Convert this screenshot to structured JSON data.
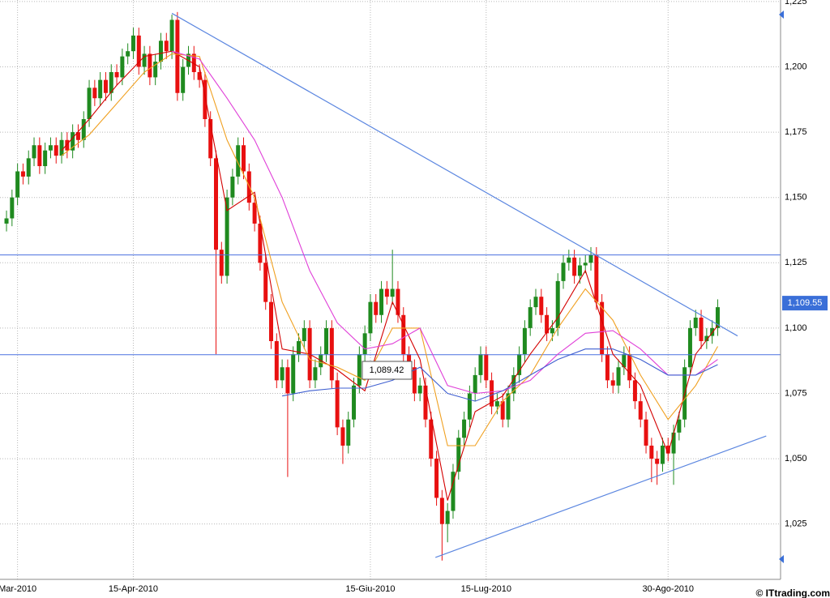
{
  "chart_data": {
    "type": "candlestick",
    "open": [
      1.14,
      1.142,
      1.15,
      1.16,
      1.158,
      1.165,
      1.17,
      1.162,
      1.168,
      1.17,
      1.166,
      1.172,
      1.168,
      1.175,
      1.172,
      1.18,
      1.192,
      1.188,
      1.195,
      1.19,
      1.198,
      1.196,
      1.204,
      1.206,
      1.212,
      1.2,
      1.205,
      1.196,
      1.202,
      1.21,
      1.206,
      1.218,
      1.19,
      1.2,
      1.205,
      1.198,
      1.195,
      1.18,
      1.165,
      1.13,
      1.12,
      1.15,
      1.158,
      1.17,
      1.16,
      1.148,
      1.14,
      1.125,
      1.11,
      1.095,
      1.08,
      1.085,
      1.075,
      1.09,
      1.095,
      1.1,
      1.08,
      1.085,
      1.09,
      1.1,
      1.08,
      1.062,
      1.055,
      1.065,
      1.078,
      1.09,
      1.098,
      1.11,
      1.105,
      1.115,
      1.112,
      1.115,
      1.105,
      1.09,
      1.085,
      1.075,
      1.078,
      1.065,
      1.05,
      1.035,
      1.025,
      1.03,
      1.045,
      1.058,
      1.065,
      1.075,
      1.082,
      1.09,
      1.08,
      1.07,
      1.072,
      1.065,
      1.075,
      1.082,
      1.09,
      1.1,
      1.108,
      1.112,
      1.105,
      1.098,
      1.1,
      1.118,
      1.125,
      1.127,
      1.12,
      1.124,
      1.125,
      1.128,
      1.11,
      1.09,
      1.08,
      1.078,
      1.085,
      1.09,
      1.08,
      1.072,
      1.065,
      1.055,
      1.05,
      1.048,
      1.055,
      1.052,
      1.06,
      1.065,
      1.085,
      1.1,
      1.104,
      1.095,
      1.097,
      1.1
    ],
    "high": [
      1.145,
      1.153,
      1.163,
      1.163,
      1.168,
      1.173,
      1.173,
      1.171,
      1.173,
      1.173,
      1.175,
      1.175,
      1.178,
      1.178,
      1.183,
      1.195,
      1.195,
      1.198,
      1.198,
      1.201,
      1.201,
      1.207,
      1.209,
      1.215,
      1.215,
      1.208,
      1.208,
      1.205,
      1.213,
      1.213,
      1.22,
      1.221,
      1.203,
      1.208,
      1.208,
      1.201,
      1.198,
      1.183,
      1.168,
      1.133,
      1.153,
      1.161,
      1.173,
      1.173,
      1.163,
      1.151,
      1.143,
      1.128,
      1.113,
      1.098,
      1.088,
      1.088,
      1.093,
      1.098,
      1.103,
      1.103,
      1.088,
      1.093,
      1.103,
      1.103,
      1.083,
      1.065,
      1.068,
      1.081,
      1.093,
      1.101,
      1.113,
      1.113,
      1.118,
      1.118,
      1.13,
      1.118,
      1.108,
      1.093,
      1.088,
      1.081,
      1.081,
      1.068,
      1.053,
      1.038,
      1.033,
      1.048,
      1.061,
      1.068,
      1.078,
      1.085,
      1.093,
      1.093,
      1.083,
      1.075,
      1.075,
      1.078,
      1.085,
      1.093,
      1.103,
      1.111,
      1.115,
      1.115,
      1.108,
      1.103,
      1.121,
      1.128,
      1.13,
      1.13,
      1.127,
      1.128,
      1.131,
      1.131,
      1.113,
      1.093,
      1.083,
      1.088,
      1.093,
      1.093,
      1.083,
      1.075,
      1.068,
      1.058,
      1.053,
      1.058,
      1.058,
      1.063,
      1.068,
      1.088,
      1.103,
      1.107,
      1.107,
      1.1,
      1.103,
      1.111
    ],
    "low": [
      1.137,
      1.139,
      1.147,
      1.155,
      1.155,
      1.162,
      1.159,
      1.159,
      1.165,
      1.163,
      1.163,
      1.165,
      1.165,
      1.169,
      1.169,
      1.177,
      1.185,
      1.185,
      1.187,
      1.187,
      1.193,
      1.193,
      1.201,
      1.203,
      1.197,
      1.197,
      1.193,
      1.193,
      1.199,
      1.203,
      1.203,
      1.187,
      1.187,
      1.197,
      1.195,
      1.192,
      1.177,
      1.162,
      1.09,
      1.117,
      1.117,
      1.147,
      1.155,
      1.157,
      1.145,
      1.137,
      1.122,
      1.107,
      1.092,
      1.077,
      1.077,
      1.043,
      1.072,
      1.087,
      1.092,
      1.077,
      1.077,
      1.082,
      1.087,
      1.077,
      1.059,
      1.048,
      1.052,
      1.062,
      1.075,
      1.087,
      1.095,
      1.102,
      1.102,
      1.109,
      1.109,
      1.102,
      1.087,
      1.082,
      1.072,
      1.072,
      1.062,
      1.047,
      1.032,
      1.011,
      1.018,
      1.027,
      1.042,
      1.055,
      1.062,
      1.072,
      1.079,
      1.077,
      1.067,
      1.067,
      1.062,
      1.062,
      1.072,
      1.079,
      1.087,
      1.097,
      1.105,
      1.102,
      1.095,
      1.095,
      1.097,
      1.115,
      1.122,
      1.117,
      1.117,
      1.121,
      1.122,
      1.107,
      1.087,
      1.077,
      1.075,
      1.075,
      1.082,
      1.077,
      1.069,
      1.062,
      1.052,
      1.041,
      1.04,
      1.045,
      1.049,
      1.04,
      1.057,
      1.062,
      1.082,
      1.097,
      1.092,
      1.092,
      1.094,
      1.097
    ],
    "close": [
      1.142,
      1.15,
      1.16,
      1.158,
      1.165,
      1.17,
      1.162,
      1.168,
      1.17,
      1.166,
      1.172,
      1.168,
      1.175,
      1.172,
      1.18,
      1.192,
      1.188,
      1.195,
      1.19,
      1.198,
      1.196,
      1.204,
      1.206,
      1.212,
      1.2,
      1.205,
      1.196,
      1.202,
      1.21,
      1.206,
      1.218,
      1.19,
      1.2,
      1.205,
      1.198,
      1.195,
      1.18,
      1.165,
      1.13,
      1.12,
      1.15,
      1.158,
      1.17,
      1.16,
      1.148,
      1.14,
      1.125,
      1.11,
      1.095,
      1.08,
      1.085,
      1.075,
      1.09,
      1.095,
      1.1,
      1.08,
      1.085,
      1.09,
      1.1,
      1.08,
      1.062,
      1.055,
      1.065,
      1.078,
      1.09,
      1.098,
      1.11,
      1.105,
      1.115,
      1.112,
      1.115,
      1.105,
      1.09,
      1.085,
      1.075,
      1.078,
      1.065,
      1.05,
      1.035,
      1.025,
      1.03,
      1.045,
      1.058,
      1.065,
      1.075,
      1.082,
      1.09,
      1.08,
      1.07,
      1.072,
      1.065,
      1.075,
      1.082,
      1.09,
      1.1,
      1.108,
      1.112,
      1.105,
      1.098,
      1.1,
      1.118,
      1.125,
      1.127,
      1.12,
      1.124,
      1.125,
      1.128,
      1.11,
      1.09,
      1.08,
      1.078,
      1.085,
      1.09,
      1.08,
      1.072,
      1.065,
      1.055,
      1.05,
      1.048,
      1.055,
      1.052,
      1.06,
      1.065,
      1.085,
      1.1,
      1.104,
      1.095,
      1.097,
      1.1,
      1.108
    ],
    "up_color": "#1f8a1f",
    "down_color": "#e81010",
    "xlim": [
      -1.18,
      140.4
    ],
    "xticks": [
      {
        "value": 2,
        "label": "Mar-2010"
      },
      {
        "value": 23,
        "label": "15-Apr-2010"
      },
      {
        "value": 66,
        "label": "15-Giu-2010"
      },
      {
        "value": 87,
        "label": "15-Lug-2010"
      },
      {
        "value": 120,
        "label": "30-Ago-2010"
      }
    ],
    "ylim": [
      1.0038,
      1.2256
    ],
    "yticks": [
      {
        "value": 1.025,
        "label": "1,025"
      },
      {
        "value": 1.05,
        "label": "1,050"
      },
      {
        "value": 1.075,
        "label": "1,075"
      },
      {
        "value": 1.1,
        "label": "1,100"
      },
      {
        "value": 1.125,
        "label": "1,125"
      },
      {
        "value": 1.15,
        "label": "1,150"
      },
      {
        "value": 1.175,
        "label": "1,175"
      },
      {
        "value": 1.2,
        "label": "1,200"
      },
      {
        "value": 1.225,
        "label": "1,225"
      }
    ],
    "grid": true,
    "moving_averages": [
      {
        "color": "#d40000",
        "x": [
          10,
          15,
          20,
          25,
          30,
          35,
          40,
          45,
          50,
          55,
          60,
          65,
          70,
          75,
          80,
          85,
          90,
          95,
          100,
          105,
          110,
          115,
          120,
          125,
          129
        ],
        "values": [
          1.168,
          1.18,
          1.193,
          1.204,
          1.206,
          1.2,
          1.145,
          1.152,
          1.092,
          1.09,
          1.084,
          1.076,
          1.11,
          1.088,
          1.034,
          1.068,
          1.074,
          1.09,
          1.104,
          1.122,
          1.09,
          1.078,
          1.052,
          1.09,
          1.101
        ]
      },
      {
        "color": "#f0a020",
        "x": [
          10,
          15,
          20,
          25,
          30,
          35,
          40,
          45,
          50,
          55,
          60,
          65,
          70,
          75,
          80,
          85,
          90,
          95,
          100,
          105,
          110,
          115,
          120,
          125,
          129
        ],
        "values": [
          1.166,
          1.174,
          1.186,
          1.198,
          1.205,
          1.204,
          1.172,
          1.15,
          1.11,
          1.088,
          1.085,
          1.08,
          1.1,
          1.1,
          1.055,
          1.055,
          1.072,
          1.082,
          1.1,
          1.115,
          1.103,
          1.082,
          1.065,
          1.078,
          1.093
        ]
      },
      {
        "color": "#e040d8",
        "x": [
          30,
          35,
          40,
          45,
          50,
          55,
          60,
          65,
          70,
          75,
          80,
          85,
          90,
          95,
          100,
          105,
          110,
          115,
          120,
          125,
          129
        ],
        "values": [
          1.206,
          1.203,
          1.188,
          1.172,
          1.15,
          1.122,
          1.102,
          1.092,
          1.094,
          1.1,
          1.078,
          1.075,
          1.076,
          1.08,
          1.09,
          1.098,
          1.099,
          1.092,
          1.082,
          1.082,
          1.088
        ]
      },
      {
        "color": "#3f5fd0",
        "x": [
          50,
          55,
          60,
          65,
          70,
          75,
          80,
          85,
          90,
          95,
          100,
          105,
          110,
          115,
          120,
          125,
          129
        ],
        "values": [
          1.074,
          1.076,
          1.077,
          1.077,
          1.08,
          1.085,
          1.075,
          1.072,
          1.076,
          1.082,
          1.088,
          1.092,
          1.092,
          1.088,
          1.082,
          1.082,
          1.086
        ]
      }
    ],
    "trendlines": [
      {
        "color": "#5b86e0",
        "x": [
          30,
          132.6
        ],
        "y": [
          1.2205,
          1.097
        ]
      },
      {
        "color": "#5b86e0",
        "x": [
          77.8,
          137.8
        ],
        "y": [
          1.0122,
          1.0587
        ]
      }
    ],
    "hlines": [
      {
        "color": "#4a70e0",
        "value": 1.128
      },
      {
        "color": "#4a70e0",
        "value": 1.0898
      }
    ],
    "annotation": {
      "value": 1.08942,
      "label": "1,089.42"
    },
    "price_label": {
      "value": 1.10955,
      "label": "1,109.55",
      "color": "#3a6fd8"
    },
    "watermark": "© ITtrading.com"
  }
}
